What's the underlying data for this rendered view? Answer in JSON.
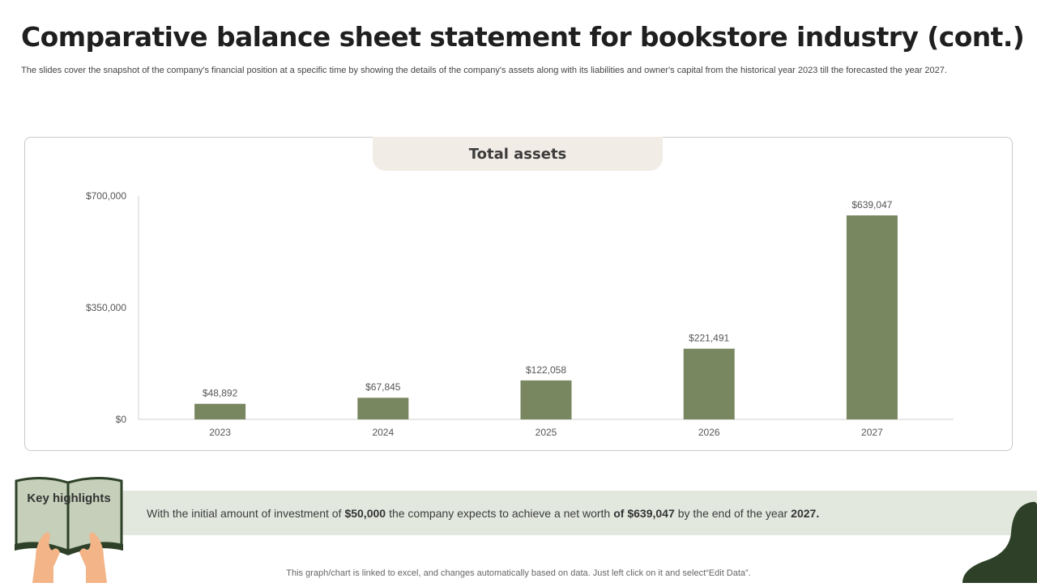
{
  "page": {
    "title": "Comparative balance sheet statement for bookstore industry (cont.)",
    "subtitle": "The slides cover the snapshot of the company's financial position at a specific time by showing the details of the company's assets along with its liabilities and owner's capital from the historical year 2023 till the forecasted the year 2027.",
    "footer": "This graph/chart is linked to excel,  and changes automatically based on data. Just left click on it and select“Edit Data”."
  },
  "colors": {
    "bar": "#788760",
    "tab_bg": "#f2ece6",
    "highlight_bg": "#e3e8de",
    "book_green": "#c5cfba",
    "dark_green": "#2e4128",
    "skin": "#f3b488"
  },
  "highlights": {
    "label": "Key highlights",
    "text_1": "With the initial amount of investment of",
    "amount_1": "$50,000",
    "text_2": "the company expects to achieve a net worth",
    "amount_2": "of $639,047",
    "text_3": "by the end of the year",
    "year": "2027."
  },
  "chart_data": {
    "type": "bar",
    "title": "Total assets",
    "categories": [
      "2023",
      "2024",
      "2025",
      "2026",
      "2027"
    ],
    "values": [
      48892,
      67845,
      122058,
      221491,
      639047
    ],
    "value_labels": [
      "$48,892",
      "$67,845",
      "$122,058",
      "$221,491",
      "$639,047"
    ],
    "y_ticks": [
      0,
      350000,
      700000
    ],
    "y_tick_labels": [
      "$0",
      "$350,000",
      "$700,000"
    ],
    "ylim": [
      0,
      700000
    ],
    "grid": false,
    "legend": "none"
  }
}
